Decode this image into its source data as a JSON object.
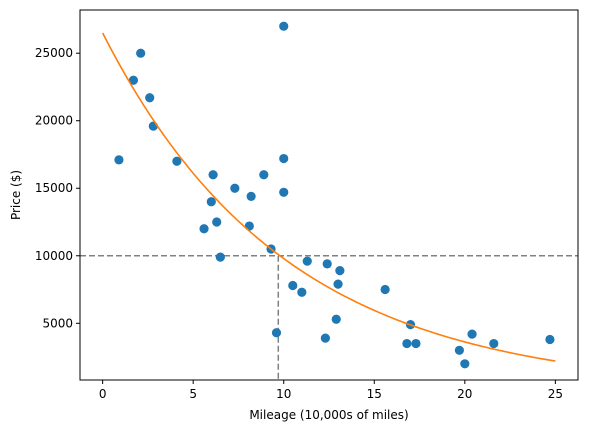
{
  "chart_data": {
    "type": "scatter",
    "title": "",
    "xlabel": "Mileage (10,000s of miles)",
    "ylabel": "Price ($)",
    "xlim": [
      -1.25,
      26.25
    ],
    "ylim": [
      800,
      28200
    ],
    "xticks": [
      0,
      5,
      10,
      15,
      20,
      25
    ],
    "yticks": [
      5000,
      10000,
      15000,
      20000,
      25000
    ],
    "grid": false,
    "colors": {
      "points": "#1f77b4",
      "curve": "#ff7f0e",
      "reference": "#808080"
    },
    "points": [
      {
        "x": 0.9,
        "y": 17100
      },
      {
        "x": 1.7,
        "y": 23000
      },
      {
        "x": 2.1,
        "y": 25000
      },
      {
        "x": 2.6,
        "y": 21700
      },
      {
        "x": 2.8,
        "y": 19600
      },
      {
        "x": 4.1,
        "y": 17000
      },
      {
        "x": 5.6,
        "y": 12000
      },
      {
        "x": 6.0,
        "y": 14000
      },
      {
        "x": 6.1,
        "y": 16000
      },
      {
        "x": 6.3,
        "y": 12500
      },
      {
        "x": 6.5,
        "y": 9900
      },
      {
        "x": 7.3,
        "y": 15000
      },
      {
        "x": 8.1,
        "y": 12200
      },
      {
        "x": 8.2,
        "y": 14400
      },
      {
        "x": 8.9,
        "y": 16000
      },
      {
        "x": 9.3,
        "y": 10500
      },
      {
        "x": 9.6,
        "y": 4300
      },
      {
        "x": 10.0,
        "y": 27000
      },
      {
        "x": 10.0,
        "y": 17200
      },
      {
        "x": 10.0,
        "y": 14700
      },
      {
        "x": 10.5,
        "y": 7800
      },
      {
        "x": 11.0,
        "y": 7300
      },
      {
        "x": 11.3,
        "y": 9600
      },
      {
        "x": 12.3,
        "y": 3900
      },
      {
        "x": 12.4,
        "y": 9400
      },
      {
        "x": 12.9,
        "y": 5300
      },
      {
        "x": 13.0,
        "y": 7900
      },
      {
        "x": 13.1,
        "y": 8900
      },
      {
        "x": 15.6,
        "y": 7500
      },
      {
        "x": 16.8,
        "y": 3500
      },
      {
        "x": 17.0,
        "y": 4900
      },
      {
        "x": 17.3,
        "y": 3500
      },
      {
        "x": 19.7,
        "y": 3000
      },
      {
        "x": 20.0,
        "y": 2000
      },
      {
        "x": 20.4,
        "y": 4200
      },
      {
        "x": 21.6,
        "y": 3500
      },
      {
        "x": 24.7,
        "y": 3800
      }
    ],
    "curve": {
      "type": "exponential",
      "x": [
        0,
        25
      ],
      "samples": [
        {
          "x": 0,
          "y": 26500
        },
        {
          "x": 5,
          "y": 16600
        },
        {
          "x": 10,
          "y": 10400
        },
        {
          "x": 15,
          "y": 6500
        },
        {
          "x": 20,
          "y": 4100
        },
        {
          "x": 25,
          "y": 2200
        }
      ]
    },
    "reference_lines": {
      "horizontal_y": 10000,
      "vertical_x": 9.7
    }
  }
}
